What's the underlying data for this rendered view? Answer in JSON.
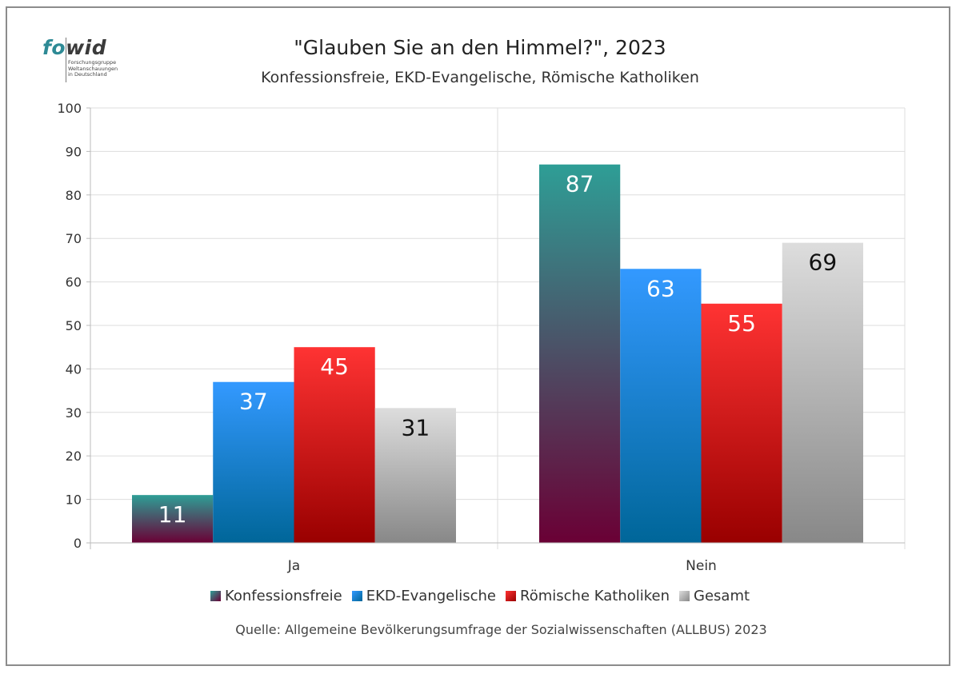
{
  "logo": {
    "word_a": "fo",
    "word_b": "wid",
    "line1": "Forschungsgruppe",
    "line2": "Weltanschauungen",
    "line3": "in Deutschland"
  },
  "chart_data": {
    "type": "bar",
    "title": "\"Glauben Sie an den Himmel?\", 2023",
    "subtitle": "Konfessionsfreie, EKD-Evangelische, Römische Katholiken",
    "categories": [
      "Ja",
      "Nein"
    ],
    "series": [
      {
        "name": "Konfessionsfreie",
        "values": [
          11,
          87
        ],
        "color": "#2e9e96",
        "color_end": "#6a0035",
        "label_color": "#ffffff"
      },
      {
        "name": "EKD-Evangelische",
        "values": [
          37,
          63
        ],
        "color": "#3399ff",
        "color_end": "#006699",
        "label_color": "#ffffff"
      },
      {
        "name": "Römische Katholiken",
        "values": [
          45,
          55
        ],
        "color": "#ff3333",
        "color_end": "#990000",
        "label_color": "#ffffff"
      },
      {
        "name": "Gesamt",
        "values": [
          31,
          69
        ],
        "color": "#dddddd",
        "color_end": "#888888",
        "label_color": "#111111"
      }
    ],
    "ylim": [
      0,
      100
    ],
    "yticks": [
      0,
      10,
      20,
      30,
      40,
      50,
      60,
      70,
      80,
      90,
      100
    ],
    "grid": true,
    "legend_position": "bottom"
  },
  "source": "Quelle: Allgemeine Bevölkerungsumfrage der Sozialwissenschaften (ALLBUS) 2023"
}
